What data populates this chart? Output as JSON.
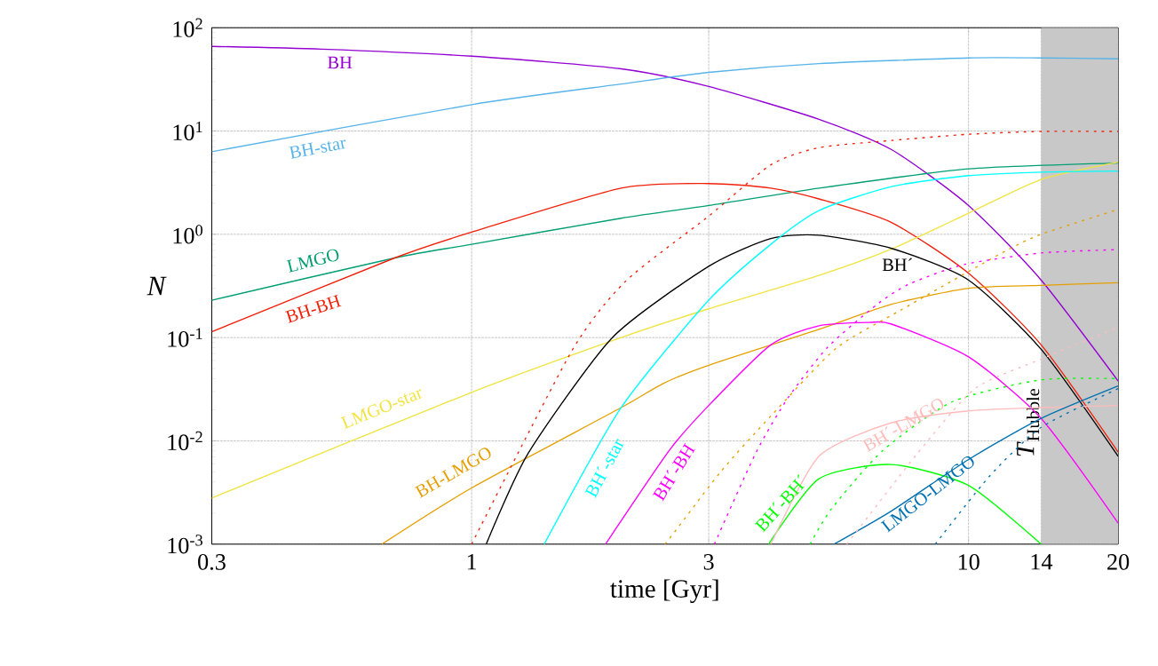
{
  "chart_data": {
    "type": "line",
    "xlabel": "time [Gyr]",
    "ylabel": "N",
    "log": "xy",
    "grid": true,
    "xlim": [
      0.3,
      20
    ],
    "ylim": [
      0.001,
      100
    ],
    "xticks": [
      0.3,
      1,
      3,
      10,
      14,
      20
    ],
    "yticks": [
      {
        "value": 0.001,
        "label": "10$^{-3}$"
      },
      {
        "value": 0.01,
        "label": "10$^{-2}$"
      },
      {
        "value": 0.1,
        "label": "10$^{-1}$"
      },
      {
        "value": 1,
        "label": "10$^{0}$"
      },
      {
        "value": 10,
        "label": "10$^{1}$"
      },
      {
        "value": 100,
        "label": "10$^{2}$"
      }
    ],
    "bands": [
      {
        "axis": "x",
        "from": 14,
        "to": 20,
        "label": "*T*$_{Hubble}$",
        "color": "#c8c8c8"
      }
    ],
    "series": [
      {
        "name": "BH",
        "color": "#9400d3",
        "x": [
          0.3,
          0.5,
          1,
          2,
          3,
          5,
          7,
          10,
          14,
          20
        ],
        "values": [
          66,
          62,
          53,
          40,
          27,
          13,
          6.6,
          1.9,
          0.36,
          0.038
        ]
      },
      {
        "name": "BH-star",
        "color": "#56b4e9",
        "x": [
          0.3,
          1,
          2,
          3,
          5,
          10,
          14,
          20
        ],
        "values": [
          6.3,
          18,
          28.5,
          37,
          45,
          51,
          51,
          50
        ]
      },
      {
        "name": "LMGO",
        "color": "#009e73",
        "x": [
          0.3,
          0.7,
          1,
          2,
          3,
          5,
          10,
          20
        ],
        "values": [
          0.23,
          0.59,
          0.8,
          1.43,
          1.9,
          2.8,
          4.3,
          4.9
        ]
      },
      {
        "name": "BH-BH",
        "color": "#f0200a",
        "x": [
          0.3,
          0.7,
          1,
          2,
          3,
          4,
          5,
          7,
          10,
          14,
          20
        ],
        "values": [
          0.114,
          0.59,
          1.05,
          2.8,
          3.1,
          2.8,
          2.2,
          1.3,
          0.42,
          0.085,
          0.0078
        ]
      },
      {
        "name": "LMGO-star",
        "color": "#f0e442",
        "x": [
          0.3,
          1,
          2,
          3,
          5,
          7,
          10,
          14,
          20
        ],
        "values": [
          0.0028,
          0.0295,
          0.1,
          0.19,
          0.4,
          0.72,
          1.6,
          3.4,
          5.0
        ]
      },
      {
        "name": "BH-LMGO",
        "color": "#e69f00",
        "x": [
          0.66,
          1,
          2,
          2.43,
          3,
          5,
          7,
          10,
          14,
          20
        ],
        "values": [
          0.001,
          0.0035,
          0.021,
          0.036,
          0.054,
          0.12,
          0.21,
          0.3,
          0.32,
          0.34
        ]
      },
      {
        "name": "BH´",
        "color": "#000000",
        "x": [
          1.07,
          1.3,
          1.92,
          3,
          4,
          5,
          7,
          10,
          14,
          20
        ],
        "values": [
          0.001,
          0.0076,
          0.1,
          0.49,
          0.91,
          0.98,
          0.73,
          0.36,
          0.077,
          0.0071
        ]
      },
      {
        "name": "BH´-star",
        "color": "#00ffff",
        "x": [
          1.4,
          2,
          3,
          4,
          5,
          7,
          10,
          14,
          20
        ],
        "values": [
          0.001,
          0.021,
          0.23,
          0.8,
          1.7,
          2.9,
          3.7,
          4.0,
          4.1
        ]
      },
      {
        "name": "BH´-BH",
        "color": "#ff00ff",
        "x": [
          1.86,
          2.5,
          3,
          4,
          5,
          6.3,
          7,
          10,
          14,
          20
        ],
        "values": [
          0.001,
          0.0081,
          0.022,
          0.085,
          0.13,
          0.14,
          0.135,
          0.065,
          0.0165,
          0.0016
        ]
      },
      {
        "name": "BH´-BH´",
        "color": "#00ff00",
        "x": [
          3.96,
          5,
          7,
          10,
          14
        ],
        "values": [
          0.001,
          0.0043,
          0.0059,
          0.0037,
          0.001
        ]
      },
      {
        "name": "BH´-LMGO",
        "color": "#ffbbbb",
        "x": [
          4.0,
          5,
          7,
          10,
          14,
          20
        ],
        "values": [
          0.001,
          0.0071,
          0.015,
          0.0195,
          0.021,
          0.022
        ]
      },
      {
        "name": "LMGO-LMGO",
        "color": "#0072b2",
        "x": [
          5.36,
          7,
          10,
          14,
          20
        ],
        "values": [
          0.001,
          0.0021,
          0.0066,
          0.0165,
          0.034
        ]
      },
      {
        "color": "#f0200a",
        "line_style": "dotted",
        "x": [
          1,
          1.59,
          2.04,
          3,
          4,
          5,
          7,
          10,
          14,
          20
        ],
        "values": [
          0.001,
          0.074,
          0.35,
          1.5,
          4.7,
          6.9,
          8.1,
          9.3,
          9.9,
          9.9
        ]
      },
      {
        "color": "#e69f00",
        "line_style": "dotted",
        "x": [
          2.45,
          2.57,
          3.18,
          4.0,
          5.42,
          7.3,
          11.6,
          14,
          20
        ],
        "values": [
          0.001,
          0.00134,
          0.0051,
          0.0174,
          0.079,
          0.184,
          0.65,
          1.0,
          1.74
        ]
      },
      {
        "color": "#ff00ff",
        "line_style": "dotted",
        "x": [
          3.08,
          3.73,
          4.33,
          5.21,
          6.55,
          7.6,
          9.8,
          14,
          20
        ],
        "values": [
          0.001,
          0.0076,
          0.026,
          0.081,
          0.21,
          0.33,
          0.51,
          0.66,
          0.71
        ]
      },
      {
        "color": "#00ff00",
        "line_style": "dotted",
        "x": [
          4.8,
          5.3,
          6.73,
          9.29,
          14,
          20
        ],
        "values": [
          0.001,
          0.0022,
          0.0081,
          0.024,
          0.039,
          0.04
        ]
      },
      {
        "color": "#ffbbbb",
        "line_style": "dotted",
        "x": [
          5.69,
          7.9,
          10.3,
          14,
          20
        ],
        "values": [
          0.001,
          0.0076,
          0.032,
          0.062,
          0.126
        ]
      },
      {
        "color": "#0072b2",
        "line_style": "dotted",
        "x": [
          8.57,
          11.0,
          14,
          20
        ],
        "values": [
          0.001,
          0.0045,
          0.0135,
          0.032
        ]
      }
    ]
  }
}
